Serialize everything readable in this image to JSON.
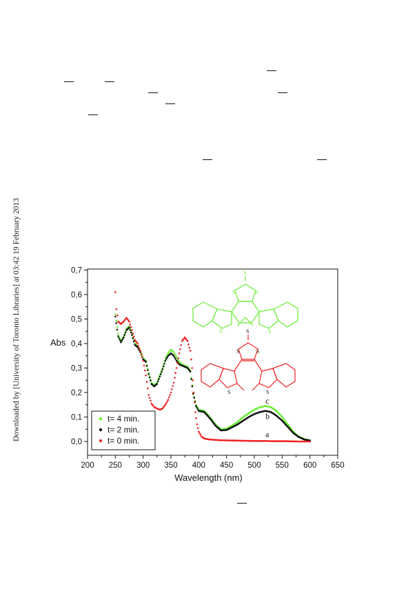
{
  "sidebar_text": "Downloaded by [University of Toronto Libraries] at 03:42 19 February 2013",
  "colors": {
    "green": "#66ee33",
    "black": "#111111",
    "red": "#ee2222"
  },
  "chart_data": {
    "type": "scatter",
    "xlabel": "Wavelength (nm)",
    "ylabel": "Abs",
    "xlim": [
      200,
      650
    ],
    "ylim": [
      -0.03,
      0.7
    ],
    "xticks": [
      200,
      250,
      300,
      350,
      400,
      450,
      500,
      550,
      600,
      650
    ],
    "yticks": [
      "0,0",
      "0,1",
      "0,2",
      "0,3",
      "0,4",
      "0,5",
      "0,6",
      "0,7"
    ],
    "grid": false,
    "legend_position": "bottom-left",
    "series": [
      {
        "name": "t= 4 min.",
        "color": "#66ee33",
        "label": "c",
        "points": [
          [
            250,
            0.52
          ],
          [
            255,
            0.44
          ],
          [
            260,
            0.41
          ],
          [
            265,
            0.43
          ],
          [
            270,
            0.46
          ],
          [
            275,
            0.47
          ],
          [
            280,
            0.44
          ],
          [
            285,
            0.4
          ],
          [
            290,
            0.39
          ],
          [
            295,
            0.37
          ],
          [
            300,
            0.34
          ],
          [
            305,
            0.33
          ],
          [
            310,
            0.28
          ],
          [
            315,
            0.24
          ],
          [
            320,
            0.23
          ],
          [
            325,
            0.24
          ],
          [
            330,
            0.27
          ],
          [
            335,
            0.3
          ],
          [
            340,
            0.34
          ],
          [
            345,
            0.36
          ],
          [
            350,
            0.375
          ],
          [
            355,
            0.365
          ],
          [
            360,
            0.345
          ],
          [
            365,
            0.325
          ],
          [
            370,
            0.315
          ],
          [
            375,
            0.31
          ],
          [
            380,
            0.305
          ],
          [
            385,
            0.29
          ],
          [
            390,
            0.2
          ],
          [
            395,
            0.15
          ],
          [
            400,
            0.13
          ],
          [
            410,
            0.125
          ],
          [
            420,
            0.1
          ],
          [
            430,
            0.07
          ],
          [
            440,
            0.05
          ],
          [
            450,
            0.052
          ],
          [
            460,
            0.065
          ],
          [
            470,
            0.08
          ],
          [
            480,
            0.1
          ],
          [
            490,
            0.115
          ],
          [
            500,
            0.13
          ],
          [
            510,
            0.14
          ],
          [
            520,
            0.145
          ],
          [
            530,
            0.14
          ],
          [
            540,
            0.125
          ],
          [
            550,
            0.1
          ],
          [
            560,
            0.07
          ],
          [
            570,
            0.04
          ],
          [
            580,
            0.02
          ],
          [
            590,
            0.01
          ],
          [
            600,
            0.005
          ]
        ]
      },
      {
        "name": "t= 2 min.",
        "color": "#111111",
        "label": "b",
        "points": [
          [
            250,
            0.51
          ],
          [
            255,
            0.43
          ],
          [
            260,
            0.405
          ],
          [
            265,
            0.425
          ],
          [
            270,
            0.455
          ],
          [
            275,
            0.465
          ],
          [
            280,
            0.435
          ],
          [
            285,
            0.395
          ],
          [
            290,
            0.385
          ],
          [
            295,
            0.365
          ],
          [
            300,
            0.335
          ],
          [
            305,
            0.325
          ],
          [
            310,
            0.275
          ],
          [
            315,
            0.235
          ],
          [
            320,
            0.225
          ],
          [
            325,
            0.235
          ],
          [
            330,
            0.265
          ],
          [
            335,
            0.295
          ],
          [
            340,
            0.33
          ],
          [
            345,
            0.35
          ],
          [
            350,
            0.36
          ],
          [
            355,
            0.35
          ],
          [
            360,
            0.33
          ],
          [
            365,
            0.315
          ],
          [
            370,
            0.31
          ],
          [
            375,
            0.305
          ],
          [
            380,
            0.3
          ],
          [
            385,
            0.285
          ],
          [
            390,
            0.195
          ],
          [
            395,
            0.145
          ],
          [
            400,
            0.125
          ],
          [
            410,
            0.12
          ],
          [
            420,
            0.095
          ],
          [
            430,
            0.065
          ],
          [
            440,
            0.045
          ],
          [
            450,
            0.047
          ],
          [
            460,
            0.058
          ],
          [
            470,
            0.07
          ],
          [
            480,
            0.085
          ],
          [
            490,
            0.1
          ],
          [
            500,
            0.112
          ],
          [
            510,
            0.12
          ],
          [
            520,
            0.125
          ],
          [
            530,
            0.12
          ],
          [
            540,
            0.105
          ],
          [
            550,
            0.085
          ],
          [
            560,
            0.06
          ],
          [
            570,
            0.035
          ],
          [
            580,
            0.018
          ],
          [
            590,
            0.008
          ],
          [
            600,
            0.004
          ]
        ]
      },
      {
        "name": "t= 0 min.",
        "color": "#ee2222",
        "label": "a",
        "points": [
          [
            250,
            0.61
          ],
          [
            252,
            0.54
          ],
          [
            255,
            0.49
          ],
          [
            260,
            0.48
          ],
          [
            265,
            0.49
          ],
          [
            270,
            0.505
          ],
          [
            275,
            0.49
          ],
          [
            280,
            0.455
          ],
          [
            285,
            0.415
          ],
          [
            290,
            0.4
          ],
          [
            295,
            0.37
          ],
          [
            300,
            0.33
          ],
          [
            305,
            0.27
          ],
          [
            310,
            0.19
          ],
          [
            315,
            0.155
          ],
          [
            320,
            0.14
          ],
          [
            325,
            0.135
          ],
          [
            330,
            0.13
          ],
          [
            335,
            0.135
          ],
          [
            340,
            0.15
          ],
          [
            345,
            0.17
          ],
          [
            350,
            0.2
          ],
          [
            355,
            0.24
          ],
          [
            360,
            0.3
          ],
          [
            365,
            0.36
          ],
          [
            370,
            0.41
          ],
          [
            375,
            0.425
          ],
          [
            380,
            0.41
          ],
          [
            385,
            0.37
          ],
          [
            388,
            0.3
          ],
          [
            391,
            0.2
          ],
          [
            394,
            0.12
          ],
          [
            397,
            0.07
          ],
          [
            400,
            0.04
          ],
          [
            405,
            0.02
          ],
          [
            410,
            0.012
          ],
          [
            420,
            0.008
          ],
          [
            440,
            0.005
          ],
          [
            460,
            0.004
          ],
          [
            480,
            0.003
          ],
          [
            500,
            0.002
          ],
          [
            520,
            0.002
          ],
          [
            540,
            0.001
          ],
          [
            560,
            0.001
          ],
          [
            580,
            0.0
          ],
          [
            600,
            0.0
          ]
        ]
      }
    ],
    "annotations": [
      "c",
      "b",
      "a"
    ]
  },
  "structures": {
    "top": {
      "atoms": [
        "S",
        "S",
        "S",
        "S",
        "S"
      ]
    },
    "bottom": {
      "atoms": [
        "S",
        "S",
        "S",
        "S",
        "S"
      ]
    }
  }
}
